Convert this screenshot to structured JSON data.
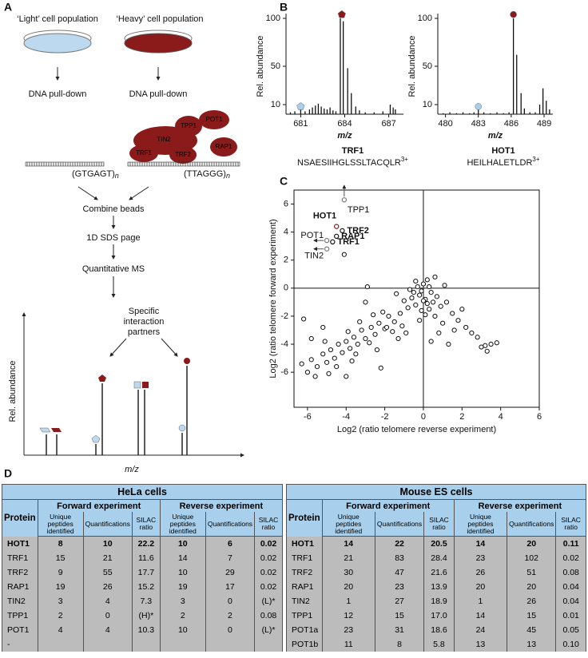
{
  "panel_labels": [
    "A",
    "B",
    "C",
    "D"
  ],
  "diagram": {
    "light_label": "‘Light’ cell population",
    "heavy_label": "‘Heavy’ cell population",
    "pulldown_light": "DNA pull-down",
    "pulldown_heavy": "DNA pull-down",
    "proteins": [
      "POT1",
      "TPP1",
      "TIN2",
      "TRF1",
      "TRF2",
      "RAP1"
    ],
    "dna_control": "(GTGAGT)",
    "dna_telomere": "(TTAGGG)",
    "repeat": "n",
    "steps": [
      "Combine beads",
      "1D SDS page",
      "Quantitative MS"
    ],
    "partners": [
      "Specific",
      "interaction",
      "partners"
    ],
    "y_label": "Rel. abundance",
    "x_label": "m/z"
  },
  "chart_data": [
    {
      "type": "spectrum",
      "title": "TRF1",
      "peptide": "NSAESIIHGLSSLTACQLR",
      "charge": "3+",
      "x_label": "m/z",
      "y_label": "Rel. abundance",
      "color": "#111",
      "x": [
        680.3,
        680.6,
        681.0,
        681.3,
        681.6,
        681.8,
        682.0,
        682.2,
        682.4,
        682.6,
        682.8,
        683.0,
        683.2,
        683.4,
        683.7,
        683.9,
        684.2,
        684.45,
        684.75,
        685.0,
        685.4,
        686.0,
        686.6,
        687.1,
        687.3,
        687.45
      ],
      "values": [
        2,
        3,
        6,
        3,
        5,
        7,
        9,
        11,
        8,
        6,
        5,
        7,
        4,
        3,
        100,
        97,
        48,
        22,
        8,
        4,
        2,
        2,
        3,
        10,
        7,
        5
      ],
      "markers": [
        {
          "x": 683.8,
          "y": 104,
          "shape": "pentagon",
          "color": "#8b1a1a"
        },
        {
          "x": 681.0,
          "y": 8,
          "shape": "pentagon",
          "color": "#a8cfee"
        }
      ],
      "xlim": [
        680,
        688
      ],
      "ylim": [
        0,
        100
      ],
      "xticks": [
        681,
        684,
        687
      ],
      "yticks": [
        10,
        50,
        100
      ]
    },
    {
      "type": "spectrum",
      "title": "HOT1",
      "peptide": "HEILHALETLDR",
      "charge": "3+",
      "x_label": "m/z",
      "y_label": "Rel. abundance",
      "color": "#111",
      "x": [
        479.8,
        480.4,
        481.0,
        481.6,
        482.2,
        482.6,
        483.0,
        483.5,
        484.1,
        484.7,
        485.3,
        485.8,
        486.2,
        486.5,
        486.9,
        487.2,
        487.7,
        488.2,
        488.6,
        488.9,
        489.2,
        489.5
      ],
      "values": [
        1,
        2,
        1,
        2,
        1,
        2,
        5,
        2,
        1,
        2,
        1,
        2,
        100,
        62,
        22,
        6,
        2,
        2,
        10,
        27,
        14,
        5
      ],
      "markers": [
        {
          "x": 486.2,
          "y": 104,
          "shape": "circle",
          "color": "#8b1a1a"
        },
        {
          "x": 483.0,
          "y": 8,
          "shape": "circle",
          "color": "#a8cfee"
        }
      ],
      "xlim": [
        479.3,
        489.8
      ],
      "ylim": [
        0,
        100
      ],
      "xticks": [
        480,
        483,
        486,
        489
      ],
      "yticks": [
        10,
        50,
        100
      ]
    },
    {
      "type": "scatter",
      "x_label": "Log2 (ratio telomere reverse experiment)",
      "y_label": "Log2 (ratio telomere forward experiment)",
      "color": "#111",
      "zero_lines": true,
      "x": [
        -0.2,
        0.1,
        -0.4,
        0.3,
        -0.1,
        0.0,
        0.2,
        -0.3,
        0.4,
        -0.6,
        0.1,
        -0.2,
        0.5,
        -0.8,
        0.6,
        -0.5,
        0.2,
        -0.1,
        0.3,
        -0.4,
        0.0,
        0.7,
        -0.7,
        0.9,
        -1.0,
        1.0,
        -1.2,
        -1.5,
        -1.8,
        -2.0,
        -2.3,
        -2.5,
        -2.7,
        -3.0,
        -3.2,
        -3.4,
        -3.6,
        -3.8,
        -4.0,
        -4.2,
        -4.4,
        -4.6,
        -4.8,
        -5.0,
        -5.2,
        -5.5,
        -5.8,
        -6.0,
        -6.3,
        -5.6,
        -2.1,
        -1.6,
        -2.8,
        -3.3,
        -3.9,
        -4.5,
        -5.1,
        -2.4,
        -1.3,
        -3.7,
        -4.9,
        -1.9,
        -2.6,
        -3.5,
        -1.1,
        -0.9,
        -3.0,
        -6.2,
        -5.2,
        -5.8,
        -2.2,
        -4.0,
        -1.4,
        -2.9,
        -4.1,
        1.2,
        1.5,
        1.8,
        2.0,
        2.2,
        2.5,
        2.8,
        3.0,
        3.3,
        3.5,
        3.8,
        3.2,
        1.6,
        0.8,
        1.3,
        0.4,
        1.1,
        0.6
      ],
      "values": [
        -0.5,
        -0.8,
        -1.2,
        -1.5,
        -0.2,
        0.3,
        0.6,
        0.1,
        -0.3,
        -0.7,
        -1.9,
        -2.3,
        -1.0,
        -1.4,
        -2.0,
        -0.3,
        -1.1,
        -1.6,
        0.1,
        0.5,
        -0.9,
        -0.6,
        -0.1,
        -1.3,
        -0.9,
        -2.5,
        -1.8,
        -2.4,
        -2.0,
        -2.9,
        -2.5,
        -3.3,
        -2.8,
        -3.6,
        -3.0,
        -4.0,
        -3.5,
        -4.3,
        -3.8,
        -4.6,
        -4.0,
        -5.0,
        -4.4,
        -5.3,
        -4.7,
        -5.6,
        -5.1,
        -6.0,
        -5.4,
        -6.3,
        -1.7,
        -3.1,
        -3.9,
        -2.4,
        -3.1,
        -5.6,
        -3.8,
        -4.4,
        -3.6,
        -5.2,
        -6.1,
        -2.8,
        -1.9,
        -4.7,
        -2.7,
        -3.2,
        -1.0,
        -2.2,
        -2.8,
        -3.6,
        -5.7,
        -6.3,
        -0.4,
        0.1,
        2.4,
        -1.0,
        -1.8,
        -2.3,
        -1.5,
        -2.8,
        -3.2,
        -3.5,
        -4.2,
        -4.5,
        -4.0,
        -3.9,
        -4.1,
        -3.0,
        -3.2,
        -4.0,
        -3.8,
        0.2,
        0.8
      ],
      "annotations": [
        {
          "text": "HOT1",
          "x": -4.5,
          "y": 4.4,
          "color": "#8b1a1a",
          "side": "top"
        },
        {
          "text": "TRF2",
          "x": -4.2,
          "y": 4.1,
          "color": "#111",
          "side": "right"
        },
        {
          "text": "RAP1",
          "x": -4.5,
          "y": 3.7,
          "color": "#111",
          "side": "right"
        },
        {
          "text": "TRF1",
          "x": -4.7,
          "y": 3.3,
          "color": "#111",
          "side": "right"
        },
        {
          "text": "POT1",
          "x": -5.0,
          "y": 3.4,
          "color": "#777",
          "side": "left",
          "arrow": "left"
        },
        {
          "text": "TIN2",
          "x": -5.0,
          "y": 2.8,
          "color": "#777",
          "side": "bottom-left",
          "arrow": "left"
        },
        {
          "text": "TPP1",
          "x": -4.1,
          "y": 6.3,
          "color": "#777",
          "side": "bottom",
          "arrow": "up"
        }
      ],
      "xlim": [
        -6.7,
        6
      ],
      "ylim": [
        -8.5,
        7
      ],
      "xticks": [
        -6,
        -4,
        -2,
        0,
        2,
        4,
        6
      ],
      "yticks": [
        -6,
        -4,
        -2,
        0,
        2,
        4,
        6
      ]
    }
  ],
  "table": {
    "sides": [
      {
        "title": "HeLa cells",
        "protein_header": "Protein",
        "groups": [
          "Forward experiment",
          "Reverse experiment"
        ],
        "columns": [
          "Unique peptides identified",
          "Quantifications",
          "SILAC ratio"
        ],
        "rows": [
          [
            "HOT1",
            "8",
            "10",
            "22.2",
            "10",
            "6",
            "0.02"
          ],
          [
            "TRF1",
            "15",
            "21",
            "11.6",
            "14",
            "7",
            "0.02"
          ],
          [
            "TRF2",
            "9",
            "55",
            "17.7",
            "10",
            "29",
            "0.02"
          ],
          [
            "RAP1",
            "19",
            "26",
            "15.2",
            "19",
            "17",
            "0.02"
          ],
          [
            "TIN2",
            "3",
            "4",
            "7.3",
            "3",
            "0",
            "(L)*"
          ],
          [
            "TPP1",
            "2",
            "0",
            "(H)*",
            "2",
            "2",
            "0.08"
          ],
          [
            "POT1",
            "4",
            "4",
            "10.3",
            "10",
            "0",
            "(L)*"
          ],
          [
            "-"
          ]
        ]
      },
      {
        "title": "Mouse ES cells",
        "protein_header": "Protein",
        "groups": [
          "Forward experiment",
          "Reverse experiment"
        ],
        "columns": [
          "Unique peptides identified",
          "Quantifications",
          "SILAC ratio"
        ],
        "rows": [
          [
            "HOT1",
            "14",
            "22",
            "20.5",
            "14",
            "20",
            "0.11"
          ],
          [
            "TRF1",
            "21",
            "83",
            "28.4",
            "23",
            "102",
            "0.02"
          ],
          [
            "TRF2",
            "30",
            "47",
            "21.6",
            "26",
            "51",
            "0.08"
          ],
          [
            "RAP1",
            "20",
            "23",
            "13.9",
            "20",
            "20",
            "0.04"
          ],
          [
            "TIN2",
            "1",
            "27",
            "18.9",
            "1",
            "26",
            "0.04"
          ],
          [
            "TPP1",
            "12",
            "15",
            "17.0",
            "14",
            "15",
            "0.01"
          ],
          [
            "POT1a",
            "23",
            "31",
            "18.6",
            "24",
            "45",
            "0.05"
          ],
          [
            "POT1b",
            "11",
            "8",
            "5.8",
            "13",
            "13",
            "0.10"
          ]
        ]
      }
    ]
  }
}
